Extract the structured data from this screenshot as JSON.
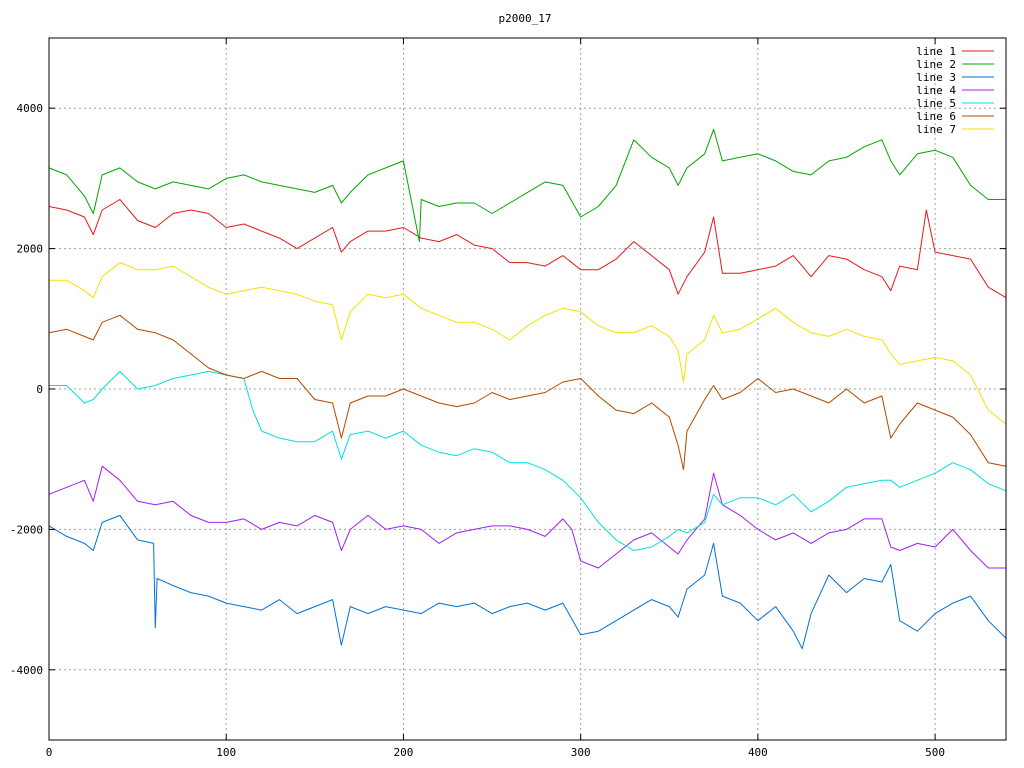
{
  "chart_data": {
    "type": "line",
    "title": "p2000_17",
    "xlabel": "",
    "ylabel": "",
    "xlim": [
      0,
      540
    ],
    "ylim": [
      -5000,
      5000
    ],
    "x_ticks": [
      0,
      100,
      200,
      300,
      400,
      500
    ],
    "y_ticks": [
      -4000,
      -2000,
      0,
      2000,
      4000
    ],
    "grid": true,
    "legend_position": "top-right",
    "series": [
      {
        "name": "line 1",
        "color": "#e41a1c",
        "x": [
          0,
          10,
          20,
          25,
          30,
          40,
          50,
          60,
          70,
          80,
          90,
          100,
          110,
          120,
          130,
          140,
          150,
          160,
          165,
          170,
          180,
          190,
          200,
          210,
          220,
          230,
          240,
          250,
          260,
          270,
          280,
          290,
          300,
          310,
          320,
          330,
          340,
          350,
          355,
          360,
          370,
          375,
          380,
          390,
          400,
          410,
          420,
          430,
          440,
          450,
          460,
          470,
          475,
          480,
          490,
          495,
          500,
          510,
          520,
          530,
          540
        ],
        "y": [
          2600,
          2550,
          2450,
          2200,
          2550,
          2700,
          2400,
          2300,
          2500,
          2550,
          2500,
          2300,
          2350,
          2250,
          2150,
          2000,
          2150,
          2300,
          1950,
          2100,
          2250,
          2250,
          2300,
          2150,
          2100,
          2200,
          2050,
          2000,
          1800,
          1800,
          1750,
          1900,
          1700,
          1700,
          1850,
          2100,
          1900,
          1700,
          1350,
          1600,
          1950,
          2450,
          1650,
          1650,
          1700,
          1750,
          1900,
          1600,
          1900,
          1850,
          1700,
          1600,
          1400,
          1750,
          1700,
          2550,
          1950,
          1900,
          1850,
          1450,
          1300
        ]
      },
      {
        "name": "line 2",
        "color": "#00a800",
        "x": [
          0,
          10,
          20,
          25,
          30,
          40,
          50,
          60,
          70,
          80,
          90,
          100,
          110,
          120,
          130,
          140,
          150,
          160,
          165,
          170,
          180,
          190,
          200,
          209,
          210,
          220,
          230,
          240,
          250,
          260,
          270,
          280,
          290,
          300,
          310,
          320,
          330,
          340,
          350,
          355,
          360,
          370,
          375,
          380,
          390,
          400,
          410,
          420,
          430,
          440,
          450,
          460,
          470,
          475,
          480,
          490,
          500,
          510,
          520,
          530,
          540
        ],
        "y": [
          3150,
          3050,
          2750,
          2500,
          3050,
          3150,
          2950,
          2850,
          2950,
          2900,
          2850,
          3000,
          3050,
          2950,
          2900,
          2850,
          2800,
          2900,
          2650,
          2800,
          3050,
          3150,
          3250,
          2100,
          2700,
          2600,
          2650,
          2650,
          2500,
          2650,
          2800,
          2950,
          2900,
          2450,
          2600,
          2900,
          3550,
          3300,
          3150,
          2900,
          3150,
          3350,
          3700,
          3250,
          3300,
          3350,
          3250,
          3100,
          3050,
          3250,
          3300,
          3450,
          3550,
          3250,
          3050,
          3350,
          3400,
          3300,
          2900,
          2700,
          2700
        ]
      },
      {
        "name": "line 3",
        "color": "#0072d6",
        "x": [
          0,
          10,
          20,
          25,
          30,
          40,
          50,
          59,
          60,
          61,
          70,
          80,
          90,
          100,
          110,
          120,
          130,
          140,
          150,
          160,
          165,
          170,
          180,
          190,
          200,
          210,
          220,
          230,
          240,
          250,
          260,
          270,
          280,
          290,
          300,
          310,
          320,
          330,
          340,
          350,
          355,
          360,
          370,
          375,
          380,
          390,
          400,
          410,
          420,
          425,
          430,
          440,
          450,
          460,
          470,
          475,
          480,
          490,
          500,
          510,
          520,
          530,
          540
        ],
        "y": [
          -1950,
          -2100,
          -2200,
          -2300,
          -1900,
          -1800,
          -2150,
          -2200,
          -3400,
          -2700,
          -2800,
          -2900,
          -2950,
          -3050,
          -3100,
          -3150,
          -3000,
          -3200,
          -3100,
          -3000,
          -3650,
          -3100,
          -3200,
          -3100,
          -3150,
          -3200,
          -3050,
          -3100,
          -3050,
          -3200,
          -3100,
          -3050,
          -3150,
          -3050,
          -3500,
          -3450,
          -3300,
          -3150,
          -3000,
          -3100,
          -3250,
          -2850,
          -2650,
          -2200,
          -2950,
          -3050,
          -3300,
          -3100,
          -3450,
          -3700,
          -3200,
          -2650,
          -2900,
          -2700,
          -2750,
          -2500,
          -3300,
          -3450,
          -3200,
          -3050,
          -2950,
          -3300,
          -3550
        ]
      },
      {
        "name": "line 4",
        "color": "#a020f0",
        "x": [
          0,
          10,
          20,
          25,
          30,
          40,
          50,
          60,
          70,
          80,
          90,
          100,
          110,
          120,
          130,
          140,
          150,
          160,
          165,
          170,
          180,
          190,
          200,
          210,
          220,
          230,
          240,
          250,
          260,
          270,
          280,
          290,
          295,
          300,
          310,
          320,
          330,
          340,
          350,
          355,
          360,
          370,
          375,
          380,
          390,
          400,
          410,
          420,
          430,
          440,
          450,
          460,
          470,
          475,
          480,
          490,
          500,
          510,
          520,
          530,
          540
        ],
        "y": [
          -1500,
          -1400,
          -1300,
          -1600,
          -1100,
          -1300,
          -1600,
          -1650,
          -1600,
          -1800,
          -1900,
          -1900,
          -1850,
          -2000,
          -1900,
          -1950,
          -1800,
          -1900,
          -2300,
          -2000,
          -1800,
          -2000,
          -1950,
          -2000,
          -2200,
          -2050,
          -2000,
          -1950,
          -1950,
          -2000,
          -2100,
          -1850,
          -2000,
          -2450,
          -2550,
          -2350,
          -2150,
          -2050,
          -2250,
          -2350,
          -2150,
          -1850,
          -1200,
          -1650,
          -1800,
          -2000,
          -2150,
          -2050,
          -2200,
          -2050,
          -2000,
          -1850,
          -1850,
          -2250,
          -2300,
          -2200,
          -2250,
          -2000,
          -2300,
          -2550,
          -2550
        ]
      },
      {
        "name": "line 5",
        "color": "#00e0e0",
        "x": [
          0,
          10,
          20,
          25,
          30,
          40,
          50,
          60,
          70,
          80,
          90,
          100,
          110,
          115,
          120,
          130,
          140,
          150,
          160,
          165,
          170,
          180,
          190,
          200,
          210,
          220,
          230,
          240,
          250,
          260,
          270,
          280,
          290,
          300,
          310,
          320,
          330,
          340,
          350,
          355,
          360,
          370,
          375,
          380,
          390,
          400,
          410,
          420,
          430,
          440,
          450,
          460,
          470,
          475,
          480,
          490,
          500,
          510,
          520,
          530,
          540
        ],
        "y": [
          50,
          50,
          -200,
          -150,
          0,
          250,
          0,
          50,
          150,
          200,
          250,
          200,
          150,
          -300,
          -600,
          -700,
          -750,
          -750,
          -600,
          -1000,
          -650,
          -600,
          -700,
          -600,
          -800,
          -900,
          -950,
          -850,
          -900,
          -1050,
          -1050,
          -1150,
          -1300,
          -1550,
          -1900,
          -2150,
          -2300,
          -2250,
          -2100,
          -2000,
          -2050,
          -1900,
          -1500,
          -1650,
          -1550,
          -1550,
          -1650,
          -1500,
          -1750,
          -1600,
          -1400,
          -1350,
          -1300,
          -1300,
          -1400,
          -1300,
          -1200,
          -1050,
          -1150,
          -1350,
          -1450
        ]
      },
      {
        "name": "line 6",
        "color": "#b34700",
        "x": [
          0,
          10,
          20,
          25,
          30,
          40,
          50,
          60,
          70,
          80,
          90,
          100,
          110,
          120,
          130,
          140,
          150,
          160,
          165,
          170,
          180,
          190,
          200,
          210,
          220,
          230,
          240,
          250,
          260,
          270,
          280,
          290,
          300,
          310,
          320,
          330,
          340,
          350,
          355,
          358,
          360,
          370,
          375,
          380,
          390,
          400,
          410,
          420,
          430,
          440,
          450,
          460,
          470,
          475,
          480,
          490,
          500,
          510,
          520,
          530,
          540
        ],
        "y": [
          800,
          850,
          750,
          700,
          950,
          1050,
          850,
          800,
          700,
          500,
          300,
          200,
          150,
          250,
          150,
          150,
          -150,
          -200,
          -700,
          -200,
          -100,
          -100,
          0,
          -100,
          -200,
          -250,
          -200,
          -50,
          -150,
          -100,
          -50,
          100,
          150,
          -100,
          -300,
          -350,
          -200,
          -400,
          -800,
          -1150,
          -600,
          -150,
          50,
          -150,
          -50,
          150,
          -50,
          0,
          -100,
          -200,
          0,
          -200,
          -100,
          -700,
          -500,
          -200,
          -300,
          -400,
          -650,
          -1050,
          -1100
        ]
      },
      {
        "name": "line 7",
        "color": "#f5e000",
        "x": [
          0,
          10,
          20,
          25,
          30,
          40,
          50,
          60,
          70,
          80,
          90,
          100,
          110,
          120,
          130,
          140,
          150,
          160,
          165,
          170,
          180,
          190,
          200,
          210,
          220,
          230,
          240,
          250,
          260,
          270,
          280,
          290,
          300,
          310,
          320,
          330,
          340,
          350,
          355,
          358,
          360,
          370,
          375,
          380,
          390,
          400,
          410,
          420,
          430,
          440,
          450,
          460,
          470,
          475,
          480,
          490,
          500,
          510,
          520,
          530,
          540
        ],
        "y": [
          1550,
          1550,
          1400,
          1300,
          1600,
          1800,
          1700,
          1700,
          1750,
          1600,
          1450,
          1350,
          1400,
          1450,
          1400,
          1350,
          1250,
          1200,
          700,
          1100,
          1350,
          1300,
          1350,
          1150,
          1050,
          950,
          950,
          850,
          700,
          900,
          1050,
          1150,
          1100,
          900,
          800,
          800,
          900,
          750,
          550,
          100,
          500,
          700,
          1050,
          800,
          850,
          1000,
          1150,
          950,
          800,
          750,
          850,
          750,
          700,
          500,
          350,
          400,
          450,
          400,
          200,
          -300,
          -500
        ]
      }
    ]
  }
}
